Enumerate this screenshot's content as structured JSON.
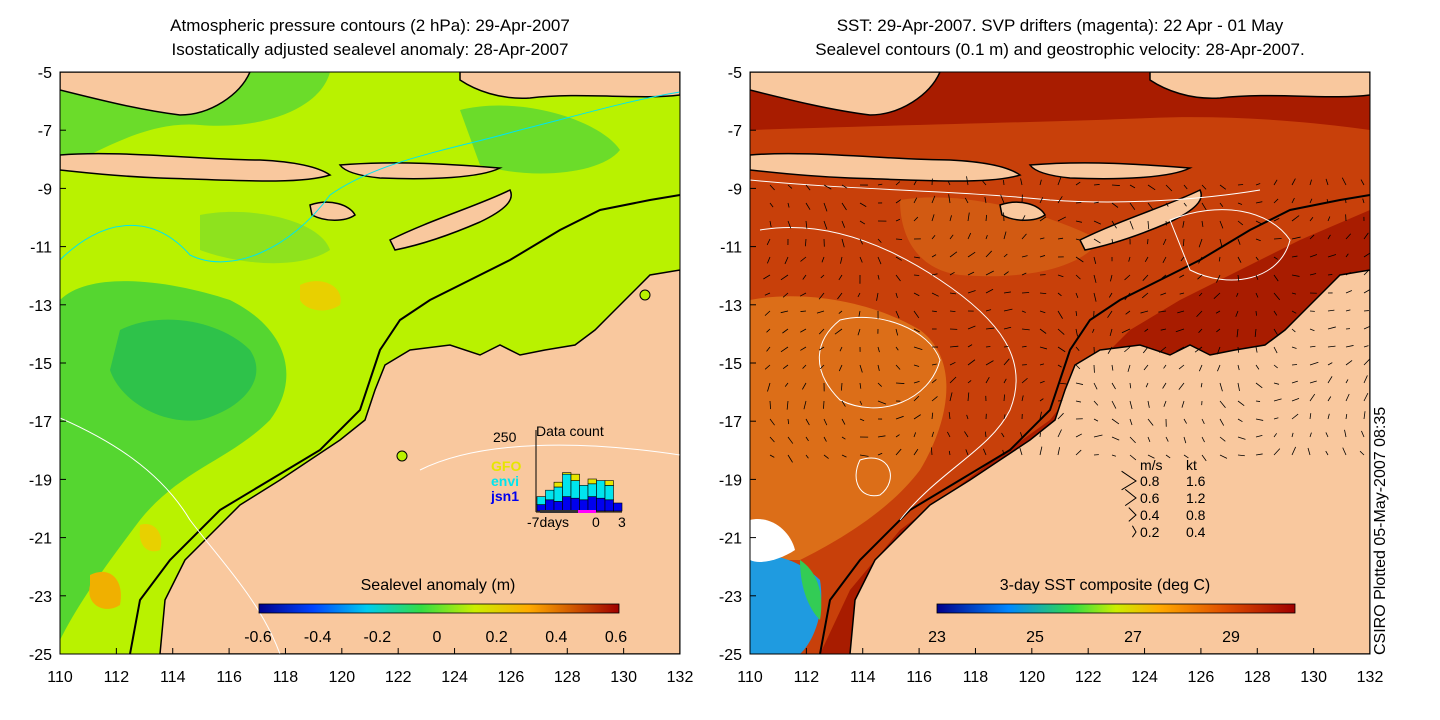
{
  "left_panel": {
    "title_line1": "Atmospheric pressure contours (2 hPa): 29-Apr-2007",
    "title_line2": "Isostatically adjusted sealevel anomaly: 28-Apr-2007",
    "colorbar_label": "Sealevel anomaly (m)",
    "colorbar_ticks": [
      "-0.6",
      "-0.4",
      "-0.2",
      "0",
      "0.2",
      "0.4",
      "0.6"
    ],
    "inset": {
      "title": "Data count",
      "ymax_label": "250",
      "legend": [
        {
          "name": "GFO",
          "color": "#e6e600"
        },
        {
          "name": "envi",
          "color": "#00e5ee"
        },
        {
          "name": "jsn1",
          "color": "#0000ee"
        }
      ],
      "xlabel_left": "-7days",
      "xlabel_mid": "0",
      "xlabel_right": "3",
      "bars": {
        "jsn1": [
          20,
          35,
          30,
          45,
          40,
          35,
          45,
          40,
          35,
          25
        ],
        "envi": [
          25,
          30,
          45,
          70,
          55,
          45,
          40,
          55,
          45,
          0
        ],
        "GFO": [
          0,
          0,
          15,
          5,
          20,
          0,
          15,
          0,
          15,
          0
        ]
      }
    }
  },
  "right_panel": {
    "title_line1": "SST: 29-Apr-2007. SVP drifters (magenta): 22 Apr - 01 May",
    "title_line2": "Sealevel contours (0.1 m) and geostrophic velocity: 28-Apr-2007.",
    "colorbar_label": "3-day SST composite (deg C)",
    "colorbar_ticks": [
      "23",
      "25",
      "27",
      "29"
    ],
    "velocity_legend": {
      "header_ms": "m/s",
      "header_kt": "kt",
      "rows": [
        {
          "ms": "0.8",
          "kt": "1.6"
        },
        {
          "ms": "0.6",
          "kt": "1.2"
        },
        {
          "ms": "0.4",
          "kt": "0.8"
        },
        {
          "ms": "0.2",
          "kt": "0.4"
        }
      ]
    }
  },
  "axes": {
    "x_ticks": [
      "110",
      "112",
      "114",
      "116",
      "118",
      "120",
      "122",
      "124",
      "126",
      "128",
      "130",
      "132"
    ],
    "y_ticks": [
      "-5",
      "-7",
      "-9",
      "-11",
      "-13",
      "-15",
      "-17",
      "-19",
      "-21",
      "-23",
      "-25"
    ]
  },
  "credit": "CSIRO Plotted 05-May-2007 08:35",
  "colors": {
    "land": "#f9c89e",
    "ocean_left": "#b9f200",
    "ocean_right": "#c43d00"
  }
}
